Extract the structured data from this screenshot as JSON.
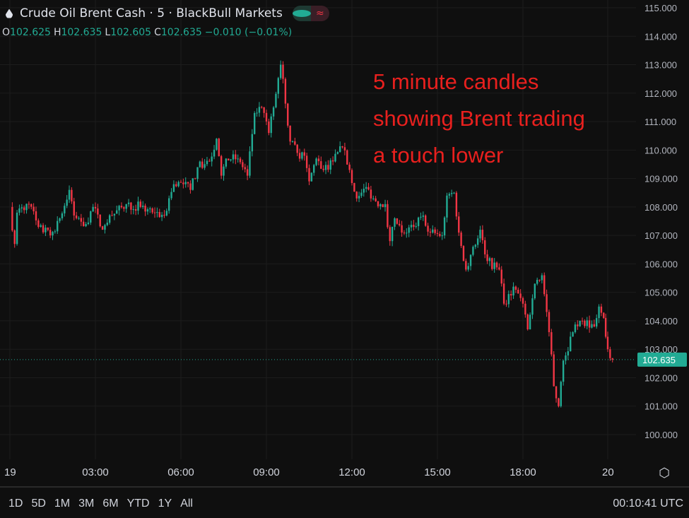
{
  "header": {
    "title": "Crude Oil Brent Cash · 5 · BlackBull Markets",
    "icon": "oil-drop-icon",
    "ohlc": {
      "o_label": "O",
      "o": "102.625",
      "h_label": "H",
      "h": "102.635",
      "l_label": "L",
      "l": "102.605",
      "c_label": "C",
      "c": "102.635",
      "change": "−0.010 (−0.01%)"
    }
  },
  "annotation": [
    "5 minute candles",
    "showing Brent trading",
    "a touch lower"
  ],
  "ranges": [
    "1D",
    "5D",
    "1M",
    "3M",
    "6M",
    "YTD",
    "1Y",
    "All"
  ],
  "clock": "00:10:41 UTC",
  "colors": {
    "up": "#22ab94",
    "down": "#f23645",
    "background": "#0f0f0f",
    "grid": "#1c1c1c",
    "annotation": "#e8201e"
  },
  "chart_data": {
    "type": "candlestick",
    "interval": "5 minutes",
    "ylim": [
      100,
      115
    ],
    "y_ticks": [
      "100.000",
      "101.000",
      "102.000",
      "103.000",
      "104.000",
      "105.000",
      "106.000",
      "107.000",
      "108.000",
      "109.000",
      "110.000",
      "111.000",
      "112.000",
      "113.000",
      "114.000",
      "115.000"
    ],
    "x_ticks": [
      {
        "label": "19",
        "t": "19 00:00"
      },
      {
        "label": "03:00",
        "t": "19 03:00"
      },
      {
        "label": "06:00",
        "t": "19 06:00"
      },
      {
        "label": "09:00",
        "t": "19 09:00"
      },
      {
        "label": "12:00",
        "t": "19 12:00"
      },
      {
        "label": "15:00",
        "t": "19 15:00"
      },
      {
        "label": "18:00",
        "t": "19 18:00"
      },
      {
        "label": "20",
        "t": "20 00:00"
      }
    ],
    "grid": true,
    "last_price": "102.635",
    "approx_closes": [
      [
        "19 00:00",
        108.0
      ],
      [
        "19 00:10",
        106.7
      ],
      [
        "19 00:15",
        107.8
      ],
      [
        "19 00:40",
        108.1
      ],
      [
        "19 01:00",
        107.3
      ],
      [
        "19 01:25",
        107.0
      ],
      [
        "19 01:45",
        107.6
      ],
      [
        "19 02:05",
        108.6
      ],
      [
        "19 02:15",
        107.7
      ],
      [
        "19 02:40",
        107.4
      ],
      [
        "19 02:55",
        108.0
      ],
      [
        "19 03:15",
        107.2
      ],
      [
        "19 03:35",
        107.7
      ],
      [
        "19 04:05",
        108.1
      ],
      [
        "19 04:35",
        108.0
      ],
      [
        "19 05:05",
        107.8
      ],
      [
        "19 05:25",
        107.7
      ],
      [
        "19 05:45",
        108.8
      ],
      [
        "19 06:05",
        108.8
      ],
      [
        "19 06:20",
        108.6
      ],
      [
        "19 06:35",
        109.4
      ],
      [
        "19 07:00",
        109.6
      ],
      [
        "19 07:15",
        110.4
      ],
      [
        "19 07:25",
        109.1
      ],
      [
        "19 07:35",
        109.7
      ],
      [
        "19 08:00",
        109.7
      ],
      [
        "19 08:20",
        109.1
      ],
      [
        "19 08:35",
        111.3
      ],
      [
        "19 08:50",
        111.5
      ],
      [
        "19 09:05",
        110.6
      ],
      [
        "19 09:15",
        111.5
      ],
      [
        "19 09:30",
        113.0
      ],
      [
        "19 09:35",
        112.5
      ],
      [
        "19 09:50",
        110.3
      ],
      [
        "19 10:05",
        109.9
      ],
      [
        "19 10:20",
        109.8
      ],
      [
        "19 10:30",
        108.9
      ],
      [
        "19 10:45",
        109.7
      ],
      [
        "19 11:00",
        109.3
      ],
      [
        "19 11:20",
        109.6
      ],
      [
        "19 11:40",
        110.1
      ],
      [
        "19 11:55",
        109.3
      ],
      [
        "19 12:10",
        108.3
      ],
      [
        "19 12:30",
        108.7
      ],
      [
        "19 12:50",
        108.2
      ],
      [
        "19 13:10",
        108.1
      ],
      [
        "19 13:20",
        106.8
      ],
      [
        "19 13:30",
        107.6
      ],
      [
        "19 13:45",
        107.1
      ],
      [
        "19 14:10",
        107.3
      ],
      [
        "19 14:30",
        107.7
      ],
      [
        "19 14:45",
        107.1
      ],
      [
        "19 15:10",
        107.0
      ],
      [
        "19 15:20",
        108.4
      ],
      [
        "19 15:35",
        108.5
      ],
      [
        "19 15:45",
        107.1
      ],
      [
        "19 16:00",
        105.8
      ],
      [
        "19 16:15",
        106.6
      ],
      [
        "19 16:30",
        107.2
      ],
      [
        "19 16:45",
        106.1
      ],
      [
        "19 17:10",
        105.8
      ],
      [
        "19 17:20",
        104.6
      ],
      [
        "19 17:40",
        105.2
      ],
      [
        "19 17:55",
        104.8
      ],
      [
        "19 18:10",
        103.7
      ],
      [
        "19 18:25",
        105.3
      ],
      [
        "19 18:40",
        105.6
      ],
      [
        "19 18:55",
        103.6
      ],
      [
        "19 19:05",
        101.7
      ],
      [
        "19 19:15",
        101.0
      ],
      [
        "19 19:25",
        102.6
      ],
      [
        "19 19:45",
        103.6
      ],
      [
        "19 20:05",
        104.0
      ],
      [
        "19 20:30",
        103.8
      ],
      [
        "19 20:40",
        104.5
      ],
      [
        "19 20:50",
        104.1
      ],
      [
        "20 00:00",
        103.0
      ],
      [
        "20 00:10",
        102.635
      ]
    ]
  }
}
